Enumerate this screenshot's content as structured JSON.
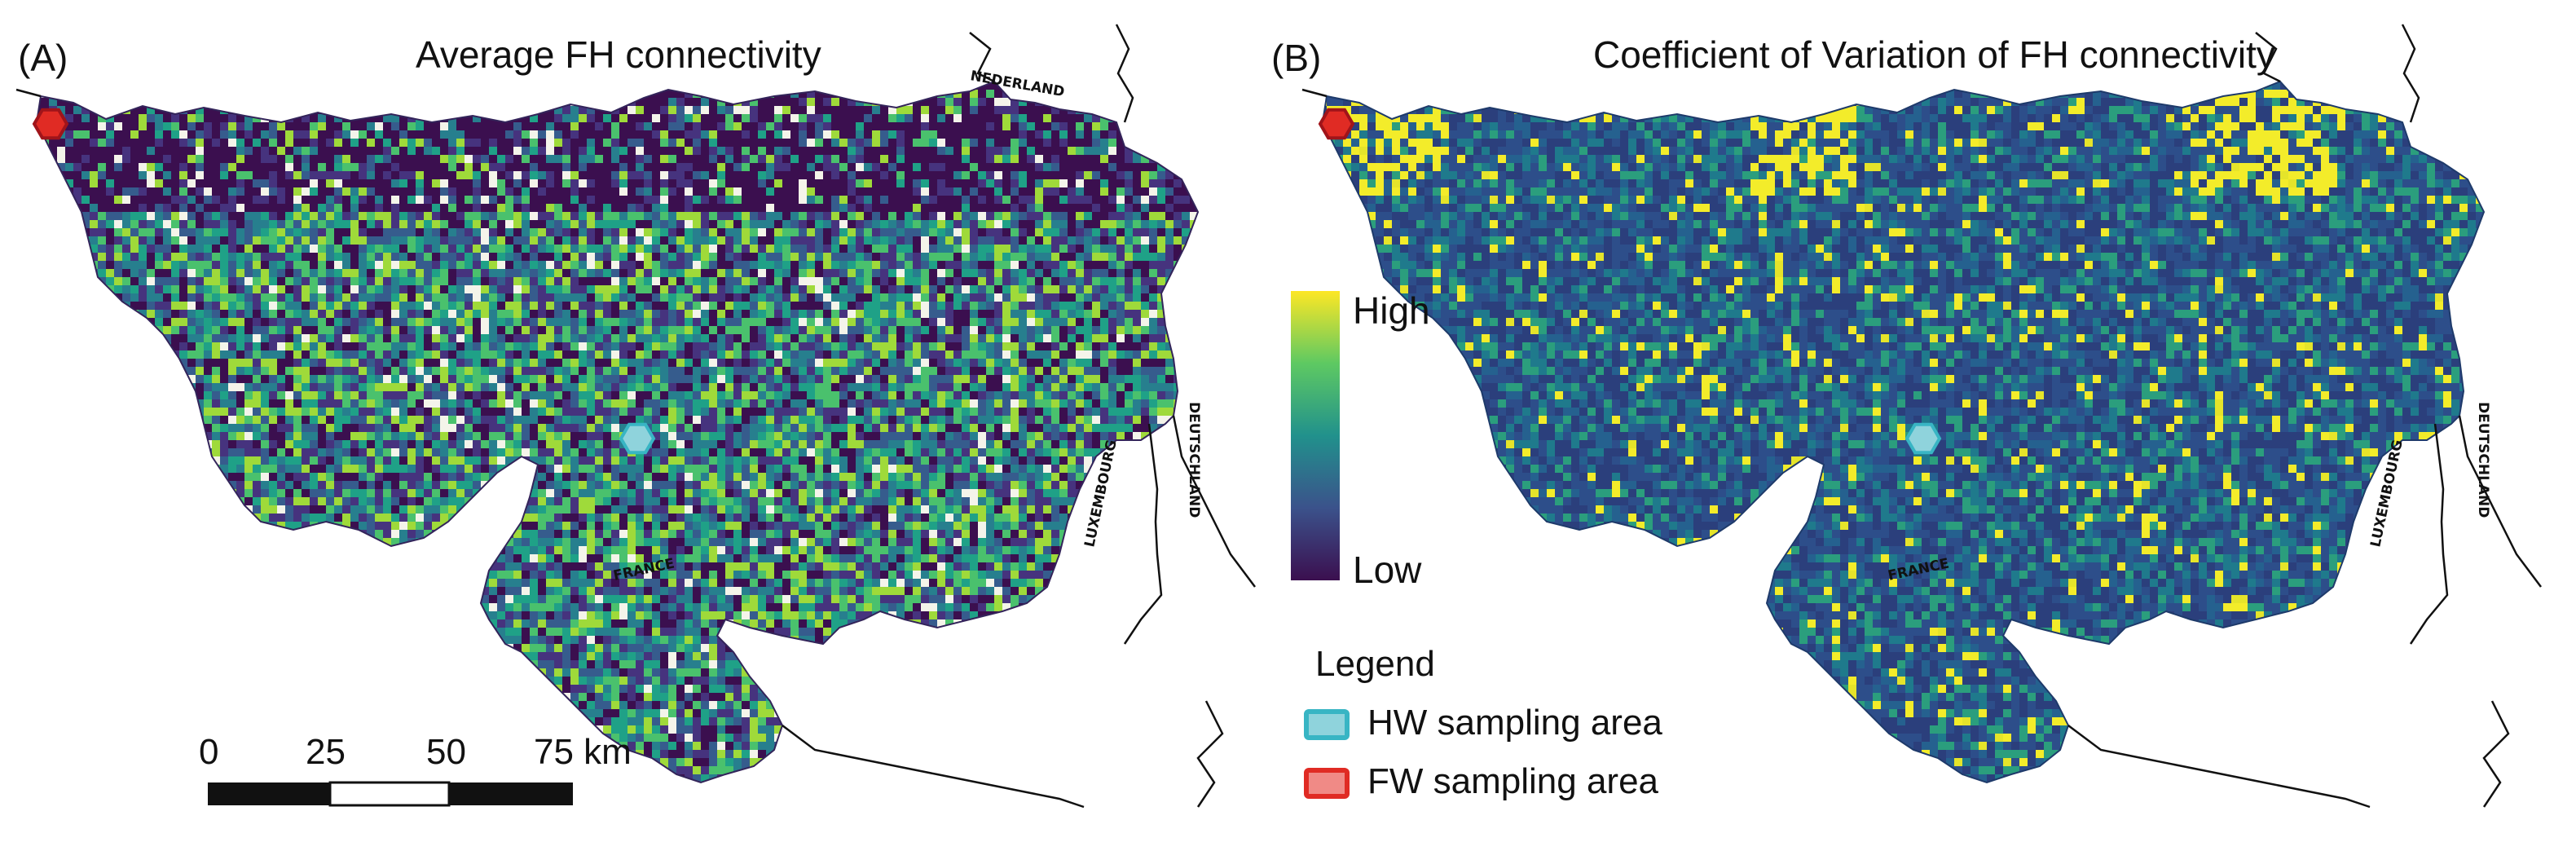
{
  "panels": [
    {
      "letter": "(A)",
      "title": "Average FH connectivity",
      "palette": "viridis"
    },
    {
      "letter": "(B)",
      "title": "Coefficient of Variation of FH connectivity",
      "palette": "cv"
    }
  ],
  "countries": [
    "NEDERLAND",
    "DEUTSCHLAND",
    "LUXEMBOURG",
    "FRANCE"
  ],
  "colorbar": {
    "high": "High",
    "low": "Low"
  },
  "legend": {
    "title": "Legend",
    "items": [
      {
        "label": "HW sampling area",
        "fill": "#8fd3dc",
        "stroke": "#38b5c4"
      },
      {
        "label": "FW sampling area",
        "fill": "#f08a86",
        "stroke": "#e02b24"
      }
    ]
  },
  "scale_bar": {
    "ticks": [
      "0",
      "25",
      "50",
      "75 km"
    ]
  },
  "colors": {
    "viridis_low": "#3b0f4f",
    "viridis_mid": "#21918c",
    "viridis_high": "#fde725",
    "cv_base": "#2d4e8a",
    "cv_high": "#f3ec2a"
  }
}
